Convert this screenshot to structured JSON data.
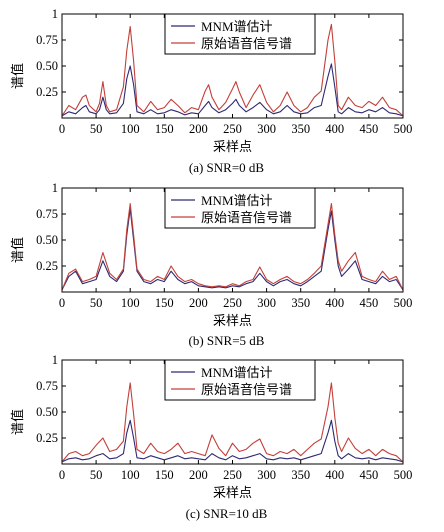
{
  "figure": {
    "colors": {
      "mnm": "#2e2a72",
      "original": "#c2403a",
      "axis": "#000000"
    }
  },
  "chart_data": [
    {
      "type": "line",
      "caption": "(a) SNR=0 dB",
      "xlabel": "采样点",
      "ylabel": "谱值",
      "xlim": [
        0,
        500
      ],
      "ylim": [
        0,
        1
      ],
      "xticks": [
        "0",
        "50",
        "100",
        "150",
        "200",
        "250",
        "300",
        "350",
        "400",
        "450",
        "500"
      ],
      "yticks": [
        "0.25",
        "0.50",
        "0.75",
        "1"
      ],
      "grid": false,
      "legend_position": "top-center",
      "series": [
        {
          "name": "MNM谱估计",
          "color": "#2e2a72",
          "x": [
            0,
            10,
            20,
            30,
            35,
            40,
            50,
            55,
            60,
            65,
            70,
            80,
            90,
            95,
            100,
            105,
            110,
            120,
            130,
            140,
            150,
            160,
            170,
            180,
            190,
            200,
            210,
            215,
            220,
            230,
            240,
            250,
            255,
            260,
            270,
            280,
            290,
            300,
            310,
            320,
            330,
            340,
            350,
            360,
            370,
            380,
            390,
            395,
            400,
            405,
            410,
            420,
            430,
            440,
            450,
            460,
            470,
            480,
            490,
            500
          ],
          "y": [
            0.02,
            0.06,
            0.04,
            0.1,
            0.12,
            0.06,
            0.04,
            0.08,
            0.2,
            0.08,
            0.04,
            0.05,
            0.14,
            0.38,
            0.5,
            0.32,
            0.06,
            0.04,
            0.08,
            0.04,
            0.05,
            0.08,
            0.06,
            0.03,
            0.05,
            0.04,
            0.12,
            0.16,
            0.1,
            0.05,
            0.08,
            0.14,
            0.18,
            0.12,
            0.06,
            0.1,
            0.15,
            0.08,
            0.04,
            0.06,
            0.12,
            0.06,
            0.04,
            0.05,
            0.1,
            0.12,
            0.4,
            0.52,
            0.3,
            0.06,
            0.04,
            0.1,
            0.06,
            0.05,
            0.08,
            0.06,
            0.1,
            0.05,
            0.04,
            0.02
          ]
        },
        {
          "name": "原始语音信号谱",
          "color": "#c2403a",
          "x": [
            0,
            10,
            20,
            30,
            35,
            40,
            50,
            55,
            60,
            65,
            70,
            80,
            90,
            95,
            100,
            105,
            110,
            120,
            130,
            140,
            150,
            160,
            170,
            180,
            190,
            200,
            210,
            215,
            220,
            230,
            240,
            250,
            255,
            260,
            270,
            280,
            290,
            300,
            310,
            320,
            330,
            340,
            350,
            360,
            370,
            380,
            390,
            395,
            400,
            405,
            410,
            420,
            430,
            440,
            450,
            460,
            470,
            480,
            490,
            500
          ],
          "y": [
            0.02,
            0.12,
            0.08,
            0.2,
            0.22,
            0.12,
            0.06,
            0.14,
            0.35,
            0.12,
            0.06,
            0.08,
            0.3,
            0.65,
            0.88,
            0.55,
            0.12,
            0.06,
            0.16,
            0.08,
            0.1,
            0.18,
            0.12,
            0.05,
            0.1,
            0.08,
            0.26,
            0.32,
            0.2,
            0.08,
            0.15,
            0.28,
            0.35,
            0.25,
            0.1,
            0.22,
            0.32,
            0.15,
            0.06,
            0.12,
            0.25,
            0.12,
            0.06,
            0.1,
            0.2,
            0.26,
            0.75,
            0.9,
            0.55,
            0.12,
            0.08,
            0.2,
            0.12,
            0.1,
            0.16,
            0.12,
            0.2,
            0.1,
            0.08,
            0.02
          ]
        }
      ]
    },
    {
      "type": "line",
      "caption": "(b) SNR=5 dB",
      "xlabel": "采样点",
      "ylabel": "谱值",
      "xlim": [
        0,
        500
      ],
      "ylim": [
        0,
        1
      ],
      "xticks": [
        "0",
        "50",
        "100",
        "150",
        "200",
        "250",
        "300",
        "350",
        "400",
        "450",
        "500"
      ],
      "yticks": [
        "0.25",
        "0.50",
        "0.75",
        "1"
      ],
      "grid": false,
      "legend_position": "top-center",
      "series": [
        {
          "name": "MNM谱估计",
          "color": "#2e2a72",
          "x": [
            0,
            10,
            20,
            30,
            40,
            50,
            60,
            70,
            80,
            90,
            95,
            100,
            105,
            110,
            120,
            130,
            140,
            150,
            160,
            170,
            180,
            190,
            200,
            210,
            220,
            230,
            240,
            250,
            260,
            270,
            280,
            290,
            300,
            310,
            320,
            330,
            340,
            350,
            360,
            370,
            380,
            390,
            395,
            400,
            405,
            410,
            420,
            430,
            440,
            450,
            460,
            470,
            480,
            490,
            500
          ],
          "y": [
            0.02,
            0.15,
            0.2,
            0.08,
            0.1,
            0.12,
            0.3,
            0.15,
            0.1,
            0.2,
            0.55,
            0.8,
            0.5,
            0.2,
            0.1,
            0.08,
            0.12,
            0.1,
            0.2,
            0.12,
            0.08,
            0.1,
            0.06,
            0.05,
            0.04,
            0.05,
            0.04,
            0.06,
            0.05,
            0.08,
            0.1,
            0.18,
            0.1,
            0.06,
            0.1,
            0.12,
            0.08,
            0.06,
            0.1,
            0.15,
            0.2,
            0.6,
            0.78,
            0.5,
            0.25,
            0.15,
            0.22,
            0.3,
            0.12,
            0.1,
            0.08,
            0.15,
            0.1,
            0.12,
            0.02
          ]
        },
        {
          "name": "原始语音信号谱",
          "color": "#c2403a",
          "x": [
            0,
            10,
            20,
            30,
            40,
            50,
            60,
            70,
            80,
            90,
            95,
            100,
            105,
            110,
            120,
            130,
            140,
            150,
            160,
            170,
            180,
            190,
            200,
            210,
            220,
            230,
            240,
            250,
            260,
            270,
            280,
            290,
            300,
            310,
            320,
            330,
            340,
            350,
            360,
            370,
            380,
            390,
            395,
            400,
            405,
            410,
            420,
            430,
            440,
            450,
            460,
            470,
            480,
            490,
            500
          ],
          "y": [
            0.02,
            0.18,
            0.22,
            0.1,
            0.12,
            0.15,
            0.38,
            0.18,
            0.12,
            0.22,
            0.6,
            0.85,
            0.55,
            0.22,
            0.12,
            0.1,
            0.15,
            0.12,
            0.25,
            0.15,
            0.1,
            0.12,
            0.08,
            0.06,
            0.05,
            0.06,
            0.05,
            0.08,
            0.06,
            0.1,
            0.12,
            0.24,
            0.12,
            0.08,
            0.12,
            0.15,
            0.1,
            0.08,
            0.12,
            0.18,
            0.25,
            0.65,
            0.85,
            0.55,
            0.3,
            0.2,
            0.3,
            0.38,
            0.15,
            0.12,
            0.1,
            0.2,
            0.12,
            0.15,
            0.02
          ]
        }
      ]
    },
    {
      "type": "line",
      "caption": "(c) SNR=10 dB",
      "xlabel": "采样点",
      "ylabel": "谱值",
      "xlim": [
        0,
        500
      ],
      "ylim": [
        0,
        1
      ],
      "xticks": [
        "0",
        "50",
        "100",
        "150",
        "200",
        "250",
        "300",
        "350",
        "400",
        "450",
        "500"
      ],
      "yticks": [
        "0.25",
        "0.50",
        "0.75",
        "1"
      ],
      "grid": false,
      "legend_position": "top-center",
      "series": [
        {
          "name": "MNM谱估计",
          "color": "#2e2a72",
          "x": [
            0,
            10,
            20,
            30,
            40,
            50,
            60,
            70,
            80,
            90,
            95,
            100,
            105,
            110,
            120,
            130,
            140,
            150,
            160,
            170,
            180,
            190,
            200,
            210,
            220,
            230,
            240,
            250,
            260,
            270,
            280,
            290,
            300,
            310,
            320,
            330,
            340,
            350,
            360,
            370,
            380,
            390,
            395,
            400,
            405,
            410,
            420,
            430,
            440,
            450,
            460,
            470,
            480,
            490,
            500
          ],
          "y": [
            0.02,
            0.05,
            0.06,
            0.04,
            0.05,
            0.08,
            0.1,
            0.05,
            0.06,
            0.1,
            0.3,
            0.42,
            0.25,
            0.06,
            0.05,
            0.08,
            0.06,
            0.04,
            0.06,
            0.08,
            0.05,
            0.06,
            0.05,
            0.04,
            0.1,
            0.06,
            0.04,
            0.08,
            0.05,
            0.06,
            0.08,
            0.1,
            0.05,
            0.04,
            0.06,
            0.05,
            0.06,
            0.04,
            0.06,
            0.08,
            0.1,
            0.3,
            0.42,
            0.22,
            0.08,
            0.05,
            0.1,
            0.06,
            0.05,
            0.06,
            0.04,
            0.06,
            0.05,
            0.04,
            0.02
          ]
        },
        {
          "name": "原始语音信号谱",
          "color": "#c2403a",
          "x": [
            0,
            10,
            20,
            30,
            40,
            50,
            60,
            70,
            80,
            90,
            95,
            100,
            105,
            110,
            120,
            130,
            140,
            150,
            160,
            170,
            180,
            190,
            200,
            210,
            220,
            230,
            240,
            250,
            260,
            270,
            280,
            290,
            300,
            310,
            320,
            330,
            340,
            350,
            360,
            370,
            380,
            390,
            395,
            400,
            405,
            410,
            420,
            430,
            440,
            450,
            460,
            470,
            480,
            490,
            500
          ],
          "y": [
            0.02,
            0.1,
            0.12,
            0.08,
            0.1,
            0.18,
            0.25,
            0.12,
            0.14,
            0.22,
            0.55,
            0.78,
            0.48,
            0.14,
            0.1,
            0.2,
            0.12,
            0.1,
            0.14,
            0.2,
            0.1,
            0.12,
            0.1,
            0.08,
            0.28,
            0.15,
            0.08,
            0.2,
            0.12,
            0.14,
            0.2,
            0.24,
            0.1,
            0.08,
            0.12,
            0.1,
            0.14,
            0.08,
            0.14,
            0.2,
            0.24,
            0.55,
            0.78,
            0.45,
            0.2,
            0.12,
            0.25,
            0.15,
            0.1,
            0.14,
            0.08,
            0.14,
            0.1,
            0.08,
            0.02
          ]
        }
      ]
    }
  ]
}
